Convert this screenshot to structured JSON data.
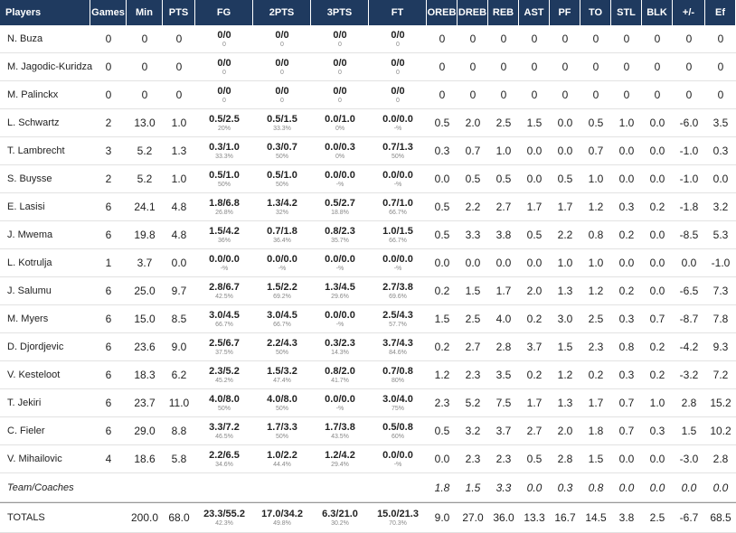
{
  "columns": [
    "Players",
    "Games",
    "Min",
    "PTS",
    "FG",
    "2PTS",
    "3PTS",
    "FT",
    "OREB",
    "DREB",
    "REB",
    "AST",
    "PF",
    "TO",
    "STL",
    "BLK",
    "+/-",
    "Ef"
  ],
  "players": [
    {
      "name": "N. Buza",
      "games": "0",
      "min": "0",
      "pts": "0",
      "fg": "0/0",
      "fg_pct": "0",
      "p2": "0/0",
      "p2_pct": "0",
      "p3": "0/0",
      "p3_pct": "0",
      "ft": "0/0",
      "ft_pct": "0",
      "oreb": "0",
      "dreb": "0",
      "reb": "0",
      "ast": "0",
      "pf": "0",
      "to": "0",
      "stl": "0",
      "blk": "0",
      "pm": "0",
      "ef": "0"
    },
    {
      "name": "M. Jagodic-Kuridza",
      "games": "0",
      "min": "0",
      "pts": "0",
      "fg": "0/0",
      "fg_pct": "0",
      "p2": "0/0",
      "p2_pct": "0",
      "p3": "0/0",
      "p3_pct": "0",
      "ft": "0/0",
      "ft_pct": "0",
      "oreb": "0",
      "dreb": "0",
      "reb": "0",
      "ast": "0",
      "pf": "0",
      "to": "0",
      "stl": "0",
      "blk": "0",
      "pm": "0",
      "ef": "0"
    },
    {
      "name": "M. Palinckx",
      "games": "0",
      "min": "0",
      "pts": "0",
      "fg": "0/0",
      "fg_pct": "0",
      "p2": "0/0",
      "p2_pct": "0",
      "p3": "0/0",
      "p3_pct": "0",
      "ft": "0/0",
      "ft_pct": "0",
      "oreb": "0",
      "dreb": "0",
      "reb": "0",
      "ast": "0",
      "pf": "0",
      "to": "0",
      "stl": "0",
      "blk": "0",
      "pm": "0",
      "ef": "0"
    },
    {
      "name": "L. Schwartz",
      "games": "2",
      "min": "13.0",
      "pts": "1.0",
      "fg": "0.5/2.5",
      "fg_pct": "20%",
      "p2": "0.5/1.5",
      "p2_pct": "33.3%",
      "p3": "0.0/1.0",
      "p3_pct": "0%",
      "ft": "0.0/0.0",
      "ft_pct": "-%",
      "oreb": "0.5",
      "dreb": "2.0",
      "reb": "2.5",
      "ast": "1.5",
      "pf": "0.0",
      "to": "0.5",
      "stl": "1.0",
      "blk": "0.0",
      "pm": "-6.0",
      "ef": "3.5"
    },
    {
      "name": "T. Lambrecht",
      "games": "3",
      "min": "5.2",
      "pts": "1.3",
      "fg": "0.3/1.0",
      "fg_pct": "33.3%",
      "p2": "0.3/0.7",
      "p2_pct": "50%",
      "p3": "0.0/0.3",
      "p3_pct": "0%",
      "ft": "0.7/1.3",
      "ft_pct": "50%",
      "oreb": "0.3",
      "dreb": "0.7",
      "reb": "1.0",
      "ast": "0.0",
      "pf": "0.0",
      "to": "0.7",
      "stl": "0.0",
      "blk": "0.0",
      "pm": "-1.0",
      "ef": "0.3"
    },
    {
      "name": "S. Buysse",
      "games": "2",
      "min": "5.2",
      "pts": "1.0",
      "fg": "0.5/1.0",
      "fg_pct": "50%",
      "p2": "0.5/1.0",
      "p2_pct": "50%",
      "p3": "0.0/0.0",
      "p3_pct": "-%",
      "ft": "0.0/0.0",
      "ft_pct": "-%",
      "oreb": "0.0",
      "dreb": "0.5",
      "reb": "0.5",
      "ast": "0.0",
      "pf": "0.5",
      "to": "1.0",
      "stl": "0.0",
      "blk": "0.0",
      "pm": "-1.0",
      "ef": "0.0"
    },
    {
      "name": "E. Lasisi",
      "games": "6",
      "min": "24.1",
      "pts": "4.8",
      "fg": "1.8/6.8",
      "fg_pct": "26.8%",
      "p2": "1.3/4.2",
      "p2_pct": "32%",
      "p3": "0.5/2.7",
      "p3_pct": "18.8%",
      "ft": "0.7/1.0",
      "ft_pct": "66.7%",
      "oreb": "0.5",
      "dreb": "2.2",
      "reb": "2.7",
      "ast": "1.7",
      "pf": "1.7",
      "to": "1.2",
      "stl": "0.3",
      "blk": "0.2",
      "pm": "-1.8",
      "ef": "3.2"
    },
    {
      "name": "J. Mwema",
      "games": "6",
      "min": "19.8",
      "pts": "4.8",
      "fg": "1.5/4.2",
      "fg_pct": "36%",
      "p2": "0.7/1.8",
      "p2_pct": "36.4%",
      "p3": "0.8/2.3",
      "p3_pct": "35.7%",
      "ft": "1.0/1.5",
      "ft_pct": "66.7%",
      "oreb": "0.5",
      "dreb": "3.3",
      "reb": "3.8",
      "ast": "0.5",
      "pf": "2.2",
      "to": "0.8",
      "stl": "0.2",
      "blk": "0.0",
      "pm": "-8.5",
      "ef": "5.3"
    },
    {
      "name": "L. Kotrulja",
      "games": "1",
      "min": "3.7",
      "pts": "0.0",
      "fg": "0.0/0.0",
      "fg_pct": "-%",
      "p2": "0.0/0.0",
      "p2_pct": "-%",
      "p3": "0.0/0.0",
      "p3_pct": "-%",
      "ft": "0.0/0.0",
      "ft_pct": "-%",
      "oreb": "0.0",
      "dreb": "0.0",
      "reb": "0.0",
      "ast": "0.0",
      "pf": "1.0",
      "to": "1.0",
      "stl": "0.0",
      "blk": "0.0",
      "pm": "0.0",
      "ef": "-1.0"
    },
    {
      "name": "J. Salumu",
      "games": "6",
      "min": "25.0",
      "pts": "9.7",
      "fg": "2.8/6.7",
      "fg_pct": "42.5%",
      "p2": "1.5/2.2",
      "p2_pct": "69.2%",
      "p3": "1.3/4.5",
      "p3_pct": "29.6%",
      "ft": "2.7/3.8",
      "ft_pct": "69.6%",
      "oreb": "0.2",
      "dreb": "1.5",
      "reb": "1.7",
      "ast": "2.0",
      "pf": "1.3",
      "to": "1.2",
      "stl": "0.2",
      "blk": "0.0",
      "pm": "-6.5",
      "ef": "7.3"
    },
    {
      "name": "M. Myers",
      "games": "6",
      "min": "15.0",
      "pts": "8.5",
      "fg": "3.0/4.5",
      "fg_pct": "66.7%",
      "p2": "3.0/4.5",
      "p2_pct": "66.7%",
      "p3": "0.0/0.0",
      "p3_pct": "-%",
      "ft": "2.5/4.3",
      "ft_pct": "57.7%",
      "oreb": "1.5",
      "dreb": "2.5",
      "reb": "4.0",
      "ast": "0.2",
      "pf": "3.0",
      "to": "2.5",
      "stl": "0.3",
      "blk": "0.7",
      "pm": "-8.7",
      "ef": "7.8"
    },
    {
      "name": "D. Djordjevic",
      "games": "6",
      "min": "23.6",
      "pts": "9.0",
      "fg": "2.5/6.7",
      "fg_pct": "37.5%",
      "p2": "2.2/4.3",
      "p2_pct": "50%",
      "p3": "0.3/2.3",
      "p3_pct": "14.3%",
      "ft": "3.7/4.3",
      "ft_pct": "84.6%",
      "oreb": "0.2",
      "dreb": "2.7",
      "reb": "2.8",
      "ast": "3.7",
      "pf": "1.5",
      "to": "2.3",
      "stl": "0.8",
      "blk": "0.2",
      "pm": "-4.2",
      "ef": "9.3"
    },
    {
      "name": "V. Kesteloot",
      "games": "6",
      "min": "18.3",
      "pts": "6.2",
      "fg": "2.3/5.2",
      "fg_pct": "45.2%",
      "p2": "1.5/3.2",
      "p2_pct": "47.4%",
      "p3": "0.8/2.0",
      "p3_pct": "41.7%",
      "ft": "0.7/0.8",
      "ft_pct": "80%",
      "oreb": "1.2",
      "dreb": "2.3",
      "reb": "3.5",
      "ast": "0.2",
      "pf": "1.2",
      "to": "0.2",
      "stl": "0.3",
      "blk": "0.2",
      "pm": "-3.2",
      "ef": "7.2"
    },
    {
      "name": "T. Jekiri",
      "games": "6",
      "min": "23.7",
      "pts": "11.0",
      "fg": "4.0/8.0",
      "fg_pct": "50%",
      "p2": "4.0/8.0",
      "p2_pct": "50%",
      "p3": "0.0/0.0",
      "p3_pct": "-%",
      "ft": "3.0/4.0",
      "ft_pct": "75%",
      "oreb": "2.3",
      "dreb": "5.2",
      "reb": "7.5",
      "ast": "1.7",
      "pf": "1.3",
      "to": "1.7",
      "stl": "0.7",
      "blk": "1.0",
      "pm": "2.8",
      "ef": "15.2"
    },
    {
      "name": "C. Fieler",
      "games": "6",
      "min": "29.0",
      "pts": "8.8",
      "fg": "3.3/7.2",
      "fg_pct": "46.5%",
      "p2": "1.7/3.3",
      "p2_pct": "50%",
      "p3": "1.7/3.8",
      "p3_pct": "43.5%",
      "ft": "0.5/0.8",
      "ft_pct": "60%",
      "oreb": "0.5",
      "dreb": "3.2",
      "reb": "3.7",
      "ast": "2.7",
      "pf": "2.0",
      "to": "1.8",
      "stl": "0.7",
      "blk": "0.3",
      "pm": "1.5",
      "ef": "10.2"
    },
    {
      "name": "V. Mihailovic",
      "games": "4",
      "min": "18.6",
      "pts": "5.8",
      "fg": "2.2/6.5",
      "fg_pct": "34.6%",
      "p2": "1.0/2.2",
      "p2_pct": "44.4%",
      "p3": "1.2/4.2",
      "p3_pct": "29.4%",
      "ft": "0.0/0.0",
      "ft_pct": "-%",
      "oreb": "0.0",
      "dreb": "2.3",
      "reb": "2.3",
      "ast": "0.5",
      "pf": "2.8",
      "to": "1.5",
      "stl": "0.0",
      "blk": "0.0",
      "pm": "-3.0",
      "ef": "2.8"
    }
  ],
  "team": {
    "name": "Team/Coaches",
    "oreb": "1.8",
    "dreb": "1.5",
    "reb": "3.3",
    "ast": "0.0",
    "pf": "0.3",
    "to": "0.8",
    "stl": "0.0",
    "blk": "0.0",
    "pm": "0.0",
    "ef": "0.0"
  },
  "totals": {
    "name": "TOTALS",
    "min": "200.0",
    "pts": "68.0",
    "fg": "23.3/55.2",
    "fg_pct": "42.3%",
    "p2": "17.0/34.2",
    "p2_pct": "49.8%",
    "p3": "6.3/21.0",
    "p3_pct": "30.2%",
    "ft": "15.0/21.3",
    "ft_pct": "70.3%",
    "oreb": "9.0",
    "dreb": "27.0",
    "reb": "36.0",
    "ast": "13.3",
    "pf": "16.7",
    "to": "14.5",
    "stl": "3.8",
    "blk": "2.5",
    "pm": "-6.7",
    "ef": "68.5"
  }
}
